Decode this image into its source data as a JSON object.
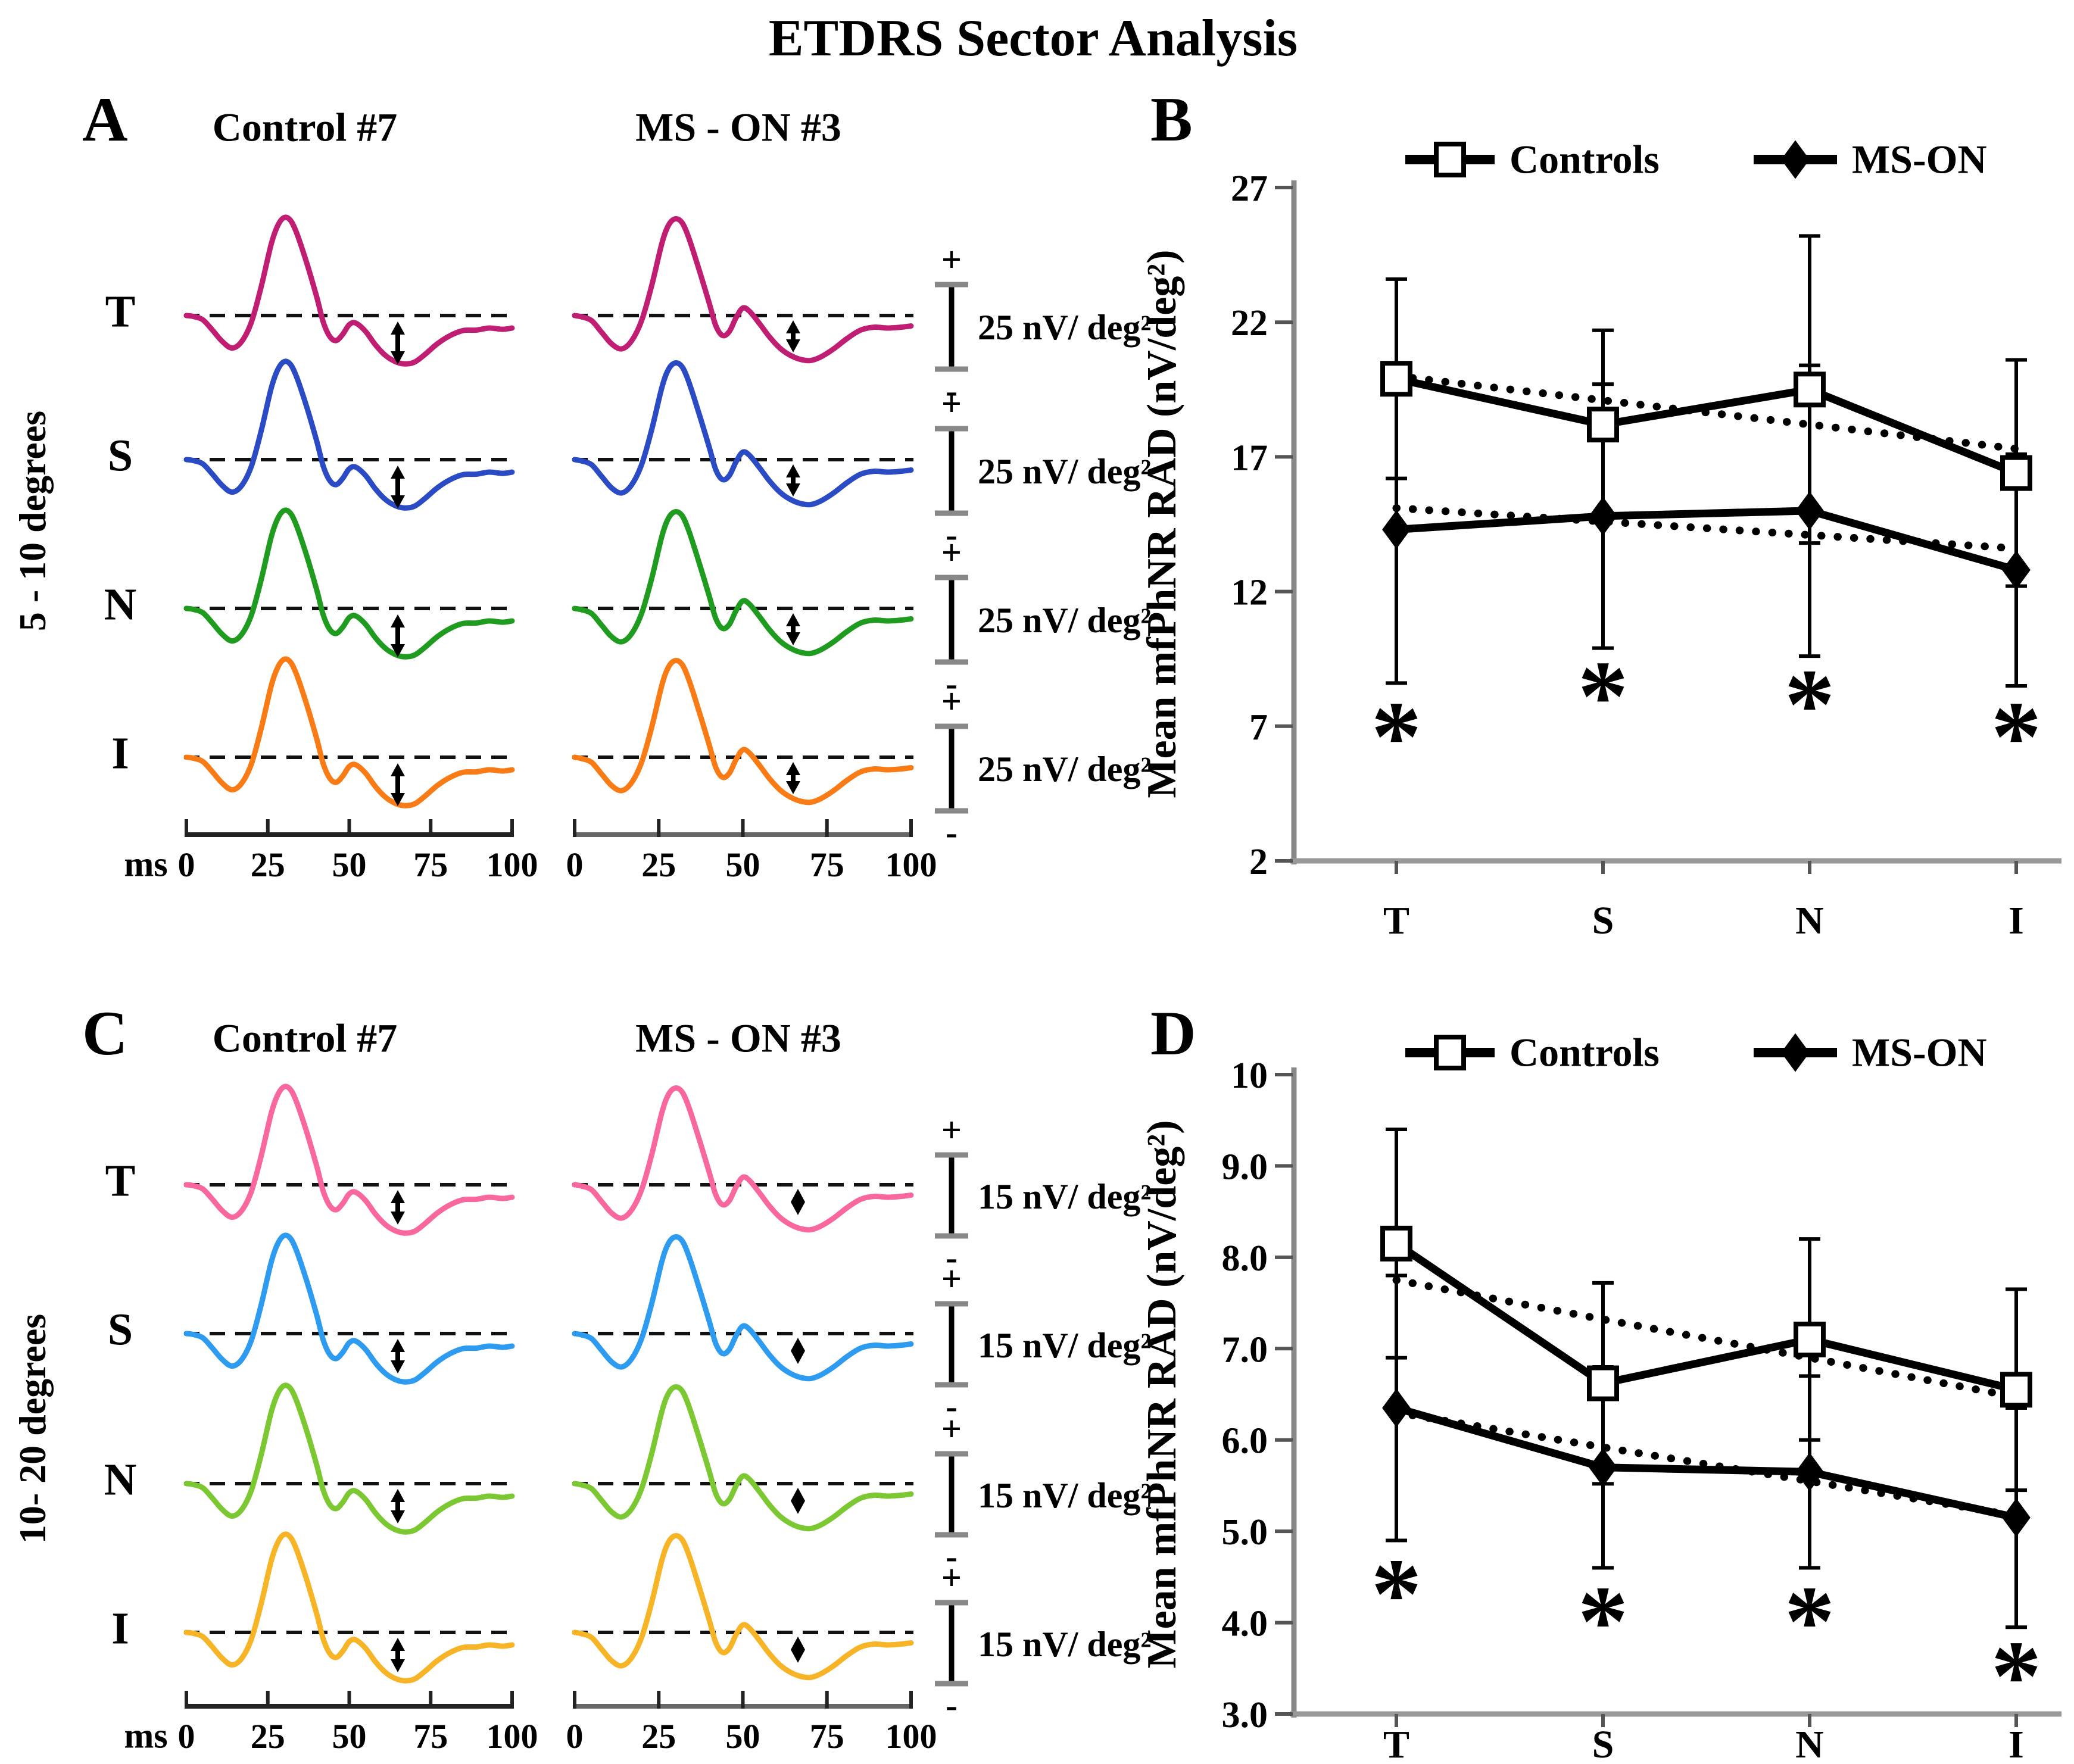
{
  "figure": {
    "title": "ETDRS Sector Analysis",
    "background": "#ffffff",
    "text_color": "#000000"
  },
  "waveform_shapes": {
    "units": "normalized amplitude vs time (ms)",
    "t": [
      0,
      2,
      5,
      8,
      11,
      14,
      17,
      20,
      23,
      26,
      28,
      30,
      32,
      34,
      37,
      40,
      42,
      44,
      46,
      48,
      50,
      52,
      55,
      58,
      61,
      64,
      67,
      70,
      73,
      77,
      81,
      85,
      89,
      93,
      97,
      100
    ],
    "control": [
      0,
      -0.02,
      -0.1,
      -0.35,
      -0.62,
      -0.78,
      -0.62,
      -0.15,
      0.7,
      1.7,
      2.15,
      2.35,
      2.28,
      1.95,
      1.25,
      0.45,
      -0.15,
      -0.5,
      -0.6,
      -0.45,
      -0.22,
      -0.18,
      -0.38,
      -0.7,
      -0.95,
      -1.1,
      -1.16,
      -1.12,
      -0.95,
      -0.68,
      -0.48,
      -0.36,
      -0.35,
      -0.3,
      -0.33,
      -0.3
    ],
    "mson": [
      0,
      -0.03,
      -0.12,
      -0.4,
      -0.68,
      -0.8,
      -0.6,
      -0.1,
      0.75,
      1.75,
      2.18,
      2.32,
      2.22,
      1.85,
      1.1,
      0.3,
      -0.25,
      -0.48,
      -0.38,
      -0.05,
      0.18,
      0.1,
      -0.2,
      -0.52,
      -0.78,
      -0.95,
      -1.05,
      -1.08,
      -1.0,
      -0.8,
      -0.55,
      -0.35,
      -0.28,
      -0.3,
      -0.28,
      -0.25
    ]
  },
  "chart_data": [
    {
      "id": "A",
      "type": "line",
      "panel_letter": "A",
      "row_label": "5 - 10 degrees",
      "columns": [
        "Control #7",
        "MS - ON #3"
      ],
      "sectors": [
        {
          "label": "T",
          "color": "#c01e73"
        },
        {
          "label": "S",
          "color": "#2a4bc4"
        },
        {
          "label": "N",
          "color": "#1f9c1f"
        },
        {
          "label": "I",
          "color": "#f97b16"
        }
      ],
      "scale_bar_label": "25 nV/ deg²",
      "scale_plus": "+",
      "scale_minus": "-",
      "xlabel": "ms",
      "x_ticks": [
        "0",
        "25",
        "50",
        "75",
        "100"
      ],
      "x_range_ms": [
        0,
        100
      ]
    },
    {
      "id": "B",
      "type": "line",
      "panel_letter": "B",
      "ylabel": "Mean mfPhNR RAD (nV/deg²)",
      "ylim": [
        2,
        27
      ],
      "ytick_values": [
        2,
        7,
        12,
        17,
        22,
        27
      ],
      "ytick_labels": [
        "2",
        "7",
        "12",
        "17",
        "22",
        "27"
      ],
      "categories": [
        "T",
        "S",
        "N",
        "I"
      ],
      "legend_position": "top",
      "series": [
        {
          "name": "Controls",
          "marker": "open-square",
          "line": "solid",
          "values": [
            19.9,
            18.2,
            19.5,
            16.4
          ],
          "err": [
            3.7,
            3.5,
            5.7,
            4.2
          ]
        },
        {
          "name": "MS-ON",
          "marker": "filled-diamond",
          "line": "solid",
          "values": [
            14.3,
            14.8,
            15.0,
            12.8
          ],
          "err": [
            5.7,
            4.9,
            5.4,
            4.3
          ]
        },
        {
          "name": "Controls trend",
          "marker": "none",
          "line": "dotted",
          "values": [
            20.0,
            19.1,
            18.2,
            17.3
          ]
        },
        {
          "name": "MS-ON trend",
          "marker": "none",
          "line": "dotted",
          "values": [
            15.1,
            14.6,
            14.1,
            13.6
          ]
        }
      ],
      "significance": {
        "symbol": "*",
        "y": [
          6.9,
          8.4,
          8.1,
          6.9
        ]
      }
    },
    {
      "id": "C",
      "type": "line",
      "panel_letter": "C",
      "row_label": "10- 20 degrees",
      "columns": [
        "Control #7",
        "MS - ON #3"
      ],
      "sectors": [
        {
          "label": "T",
          "color": "#f8679d"
        },
        {
          "label": "S",
          "color": "#2d9bf0"
        },
        {
          "label": "N",
          "color": "#7cc832"
        },
        {
          "label": "I",
          "color": "#f6b426"
        }
      ],
      "scale_bar_label": "15 nV/ deg²",
      "scale_plus": "+",
      "scale_minus": "-",
      "xlabel": "ms",
      "x_ticks": [
        "0",
        "25",
        "50",
        "75",
        "100"
      ],
      "x_range_ms": [
        0,
        100
      ]
    },
    {
      "id": "D",
      "type": "line",
      "panel_letter": "D",
      "ylabel": "Mean mfPhNR RAD (nV/deg²)",
      "ylim": [
        3,
        10
      ],
      "ytick_values": [
        3,
        4,
        5,
        6,
        7,
        8,
        9,
        10
      ],
      "ytick_labels": [
        "3.0",
        "4.0",
        "5.0",
        "6.0",
        "7.0",
        "8.0",
        "9.0",
        "10"
      ],
      "categories": [
        "T",
        "S",
        "N",
        "I"
      ],
      "legend_position": "top",
      "series": [
        {
          "name": "Controls",
          "marker": "open-square",
          "line": "solid",
          "values": [
            8.15,
            6.62,
            7.1,
            6.55
          ],
          "err": [
            1.25,
            1.1,
            1.1,
            1.1
          ]
        },
        {
          "name": "MS-ON",
          "marker": "filled-diamond",
          "line": "solid",
          "values": [
            6.35,
            5.7,
            5.65,
            5.15
          ],
          "err": [
            1.45,
            1.1,
            1.05,
            1.2
          ]
        },
        {
          "name": "Controls trend",
          "marker": "none",
          "line": "dotted",
          "values": [
            7.75,
            7.32,
            6.9,
            6.47
          ]
        },
        {
          "name": "MS-ON trend",
          "marker": "none",
          "line": "dotted",
          "values": [
            6.3,
            5.92,
            5.55,
            5.17
          ]
        }
      ],
      "significance": {
        "symbol": "*",
        "y": [
          4.4,
          4.1,
          4.1,
          3.5
        ]
      }
    }
  ]
}
